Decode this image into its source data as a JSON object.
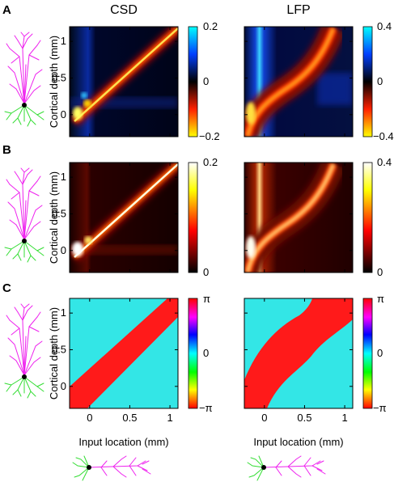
{
  "figure": {
    "col_titles": [
      "CSD",
      "LFP"
    ],
    "row_labels": [
      "A",
      "B",
      "C"
    ],
    "ylabel": "Cortical depth (mm)",
    "xlabel": "Input location (mm)",
    "y_ticks": [
      "1",
      "0.5",
      "0"
    ],
    "x_ticks": [
      "0",
      "0.5",
      "1"
    ]
  },
  "chart_data": [
    {
      "type": "heatmap",
      "row": "A",
      "title": "CSD",
      "ylabel": "Cortical depth (mm)",
      "xlim": [
        -0.25,
        1.1
      ],
      "ylim": [
        -0.3,
        1.2
      ],
      "colormap": "blue-black-red-yellow",
      "clim": [
        -0.2,
        0.2
      ],
      "colorbar_ticks": [
        "0.2",
        "0",
        "−0.2"
      ]
    },
    {
      "type": "heatmap",
      "row": "A",
      "title": "LFP",
      "xlim": [
        -0.25,
        1.1
      ],
      "ylim": [
        -0.3,
        1.2
      ],
      "colormap": "blue-black-red-yellow",
      "clim": [
        -0.4,
        0.4
      ],
      "colorbar_ticks": [
        "0.4",
        "0",
        "−0.4"
      ]
    },
    {
      "type": "heatmap",
      "row": "B",
      "ylabel": "Cortical depth (mm)",
      "xlim": [
        -0.25,
        1.1
      ],
      "ylim": [
        -0.3,
        1.2
      ],
      "colormap": "hot",
      "clim": [
        0,
        0.2
      ],
      "colorbar_ticks": [
        "0.2",
        "0"
      ]
    },
    {
      "type": "heatmap",
      "row": "B",
      "xlim": [
        -0.25,
        1.1
      ],
      "ylim": [
        -0.3,
        1.2
      ],
      "colormap": "hot",
      "clim": [
        0,
        0.4
      ],
      "colorbar_ticks": [
        "0.4",
        "0"
      ]
    },
    {
      "type": "heatmap",
      "row": "C",
      "ylabel": "Cortical depth (mm)",
      "xlabel": "Input location (mm)",
      "xlim": [
        -0.25,
        1.1
      ],
      "ylim": [
        -0.3,
        1.2
      ],
      "colormap": "hsv-phase",
      "clim": [
        "−π",
        "π"
      ],
      "colorbar_ticks": [
        "π",
        "0",
        "−π"
      ],
      "colors": {
        "background": "#33e6e6",
        "band": "#ff1a1a"
      }
    },
    {
      "type": "heatmap",
      "row": "C",
      "xlabel": "Input location (mm)",
      "xlim": [
        -0.25,
        1.1
      ],
      "ylim": [
        -0.3,
        1.2
      ],
      "colormap": "hsv-phase",
      "clim": [
        "−π",
        "π"
      ],
      "colorbar_ticks": [
        "π",
        "0",
        "−π"
      ],
      "colors": {
        "background": "#33e6e6",
        "band": "#ff1a1a"
      }
    }
  ],
  "colors": {
    "neuron_apical": "#ee22ee",
    "neuron_basal": "#33dd33",
    "neuron_soma": "#000000"
  },
  "icons": [
    "pyramidal-neuron-vertical-icon",
    "pyramidal-neuron-horizontal-icon"
  ]
}
